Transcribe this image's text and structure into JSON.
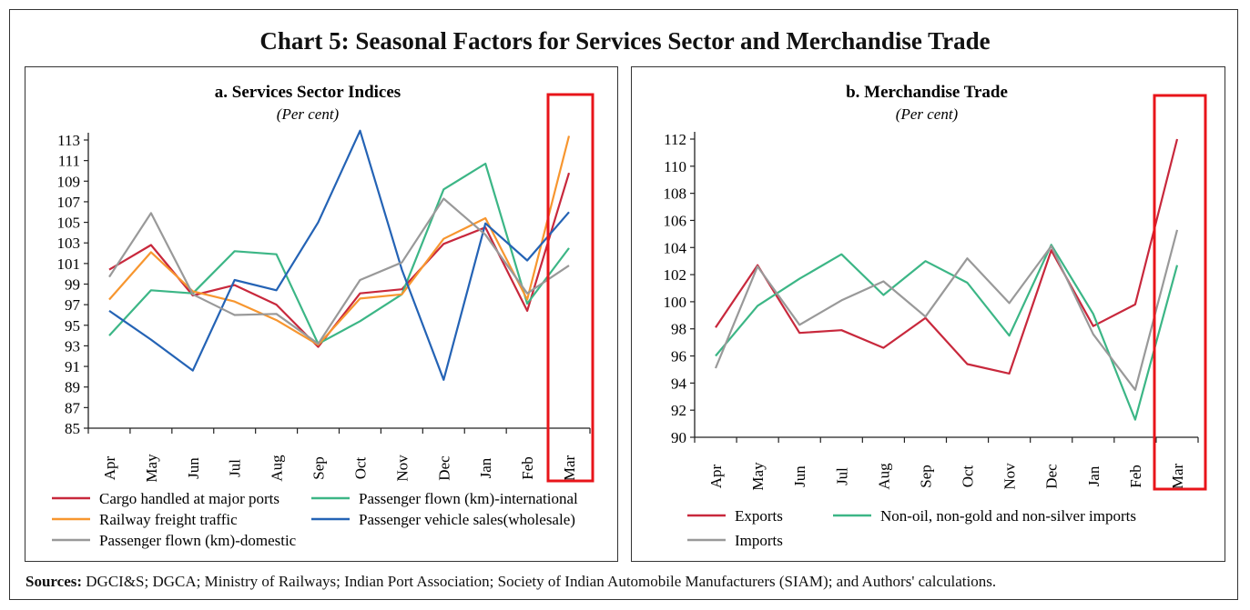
{
  "title": "Chart 5: Seasonal Factors for Services Sector and Merchandise Trade",
  "sources": {
    "label": "Sources:",
    "text": " DGCI&S; DGCA; Ministry of Railways; Indian Port Association; Society of Indian Automobile Manufacturers (SIAM); and Authors' calculations."
  },
  "highlight_color": "#e8141a",
  "chart_data": [
    {
      "type": "line",
      "title": "a. Services Sector Indices",
      "subtitle": "(Per cent)",
      "categories": [
        "Apr",
        "May",
        "Jun",
        "Jul",
        "Aug",
        "Sep",
        "Oct",
        "Nov",
        "Dec",
        "Jan",
        "Feb",
        "Mar"
      ],
      "ylim": [
        85,
        113
      ],
      "yticks": [
        85,
        87,
        89,
        91,
        93,
        95,
        97,
        99,
        101,
        103,
        105,
        107,
        109,
        111,
        113
      ],
      "highlight_category": "Mar",
      "legend_position": "bottom",
      "series": [
        {
          "name": "Cargo handled at major ports",
          "color": "#c8283c",
          "values": [
            100.4,
            102.8,
            97.9,
            98.9,
            97.0,
            92.9,
            98.1,
            98.5,
            102.9,
            104.5,
            96.4,
            109.8
          ]
        },
        {
          "name": "Passenger flown (km)-international",
          "color": "#3cb686",
          "values": [
            94.0,
            98.4,
            98.1,
            102.2,
            101.9,
            93.2,
            95.4,
            98.0,
            108.2,
            110.7,
            97.1,
            102.5
          ]
        },
        {
          "name": "Railway freight traffic",
          "color": "#f7962f",
          "values": [
            97.5,
            102.1,
            98.3,
            97.3,
            95.5,
            93.1,
            97.6,
            98.0,
            103.4,
            105.4,
            97.5,
            113.4
          ]
        },
        {
          "name": "Passenger vehicle sales(wholesale)",
          "color": "#2463b5",
          "values": [
            96.4,
            93.6,
            90.6,
            99.4,
            98.4,
            105.0,
            113.9,
            100.4,
            89.7,
            104.9,
            101.3,
            106.0
          ]
        },
        {
          "name": "Passenger flown (km)-domestic",
          "color": "#999999",
          "values": [
            99.7,
            105.9,
            98.0,
            96.0,
            96.1,
            93.2,
            99.4,
            101.1,
            107.3,
            103.8,
            98.1,
            100.8
          ]
        }
      ]
    },
    {
      "type": "line",
      "title": "b. Merchandise Trade",
      "subtitle": "(Per cent)",
      "categories": [
        "Apr",
        "May",
        "Jun",
        "Jul",
        "Aug",
        "Sep",
        "Oct",
        "Nov",
        "Dec",
        "Jan",
        "Feb",
        "Mar"
      ],
      "ylim": [
        90,
        112
      ],
      "yticks": [
        90,
        92,
        94,
        96,
        98,
        100,
        102,
        104,
        106,
        108,
        110,
        112
      ],
      "highlight_category": "Mar",
      "legend_position": "bottom",
      "series": [
        {
          "name": "Exports",
          "color": "#c8283c",
          "values": [
            98.1,
            102.7,
            97.7,
            97.9,
            96.6,
            98.8,
            95.4,
            94.7,
            103.8,
            98.2,
            99.8,
            112.0
          ]
        },
        {
          "name": "Non-oil, non-gold and non-silver imports",
          "color": "#3cb686",
          "values": [
            96.0,
            99.7,
            101.7,
            103.5,
            100.5,
            103.0,
            101.4,
            97.5,
            104.2,
            99.1,
            91.3,
            102.7
          ]
        },
        {
          "name": "Imports",
          "color": "#999999",
          "values": [
            95.1,
            102.6,
            98.3,
            100.1,
            101.5,
            98.9,
            103.2,
            99.9,
            104.1,
            97.6,
            93.5,
            105.3
          ]
        }
      ]
    }
  ]
}
